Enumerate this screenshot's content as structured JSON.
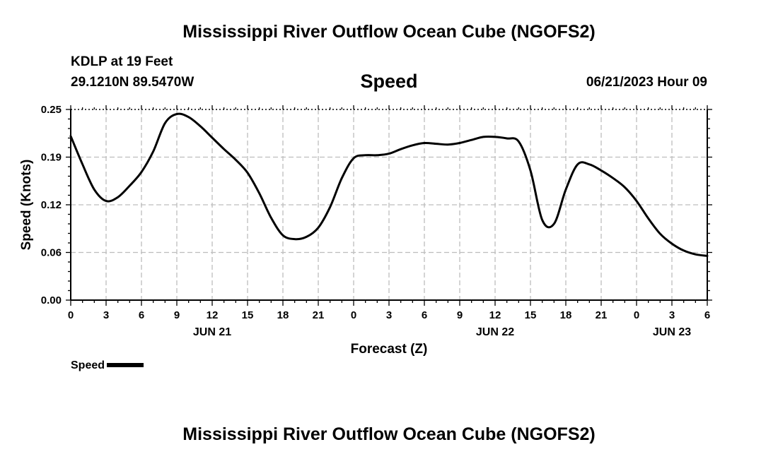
{
  "header": {
    "title": "Mississippi River Outflow Ocean Cube (NGOFS2)",
    "station": "KDLP at 19 Feet",
    "coords": "29.1210N  89.5470W",
    "subtitle": "Speed",
    "datetime": "06/21/2023 Hour 09"
  },
  "footer": {
    "title": "Mississippi River Outflow Ocean Cube (NGOFS2)"
  },
  "legend": {
    "label": "Speed"
  },
  "chart_data": {
    "type": "line",
    "title": "Speed",
    "xlabel": "Forecast (Z)",
    "ylabel": "Speed (Knots)",
    "xlim": [
      0,
      54
    ],
    "ylim": [
      0,
      0.25
    ],
    "x_tick_positions": [
      0,
      3,
      6,
      9,
      12,
      15,
      18,
      21,
      24,
      27,
      30,
      33,
      36,
      39,
      42,
      45,
      48,
      51,
      54
    ],
    "x_tick_labels": [
      "0",
      "3",
      "6",
      "9",
      "12",
      "15",
      "18",
      "21",
      "0",
      "3",
      "6",
      "9",
      "12",
      "15",
      "18",
      "21",
      "0",
      "3",
      "6"
    ],
    "date_labels": [
      {
        "x": 12,
        "label": "JUN 21"
      },
      {
        "x": 36,
        "label": "JUN 22"
      },
      {
        "x": 51,
        "label": "JUN 23"
      }
    ],
    "y_ticks": [
      0.0,
      0.0625,
      0.125,
      0.1875,
      0.25
    ],
    "y_tick_labels": [
      "0.00",
      "0.06",
      "0.12",
      "0.19",
      "0.25"
    ],
    "grid": true,
    "legend_position": "bottom-left",
    "line_color": "#000000",
    "series": [
      {
        "name": "Speed",
        "x": [
          0,
          1,
          2,
          3,
          4,
          5,
          6,
          7,
          8,
          9,
          10,
          11,
          12,
          13,
          14,
          15,
          16,
          17,
          18,
          19,
          20,
          21,
          22,
          23,
          24,
          25,
          26,
          27,
          28,
          29,
          30,
          31,
          32,
          33,
          34,
          35,
          36,
          37,
          38,
          39,
          40,
          41,
          42,
          43,
          44,
          45,
          46,
          47,
          48,
          49,
          50,
          51,
          52,
          53,
          54
        ],
        "y": [
          0.215,
          0.178,
          0.145,
          0.13,
          0.135,
          0.15,
          0.168,
          0.195,
          0.232,
          0.244,
          0.24,
          0.228,
          0.213,
          0.198,
          0.184,
          0.167,
          0.14,
          0.108,
          0.085,
          0.08,
          0.083,
          0.095,
          0.122,
          0.16,
          0.186,
          0.19,
          0.19,
          0.192,
          0.198,
          0.203,
          0.206,
          0.205,
          0.204,
          0.206,
          0.21,
          0.214,
          0.214,
          0.212,
          0.208,
          0.17,
          0.105,
          0.1,
          0.145,
          0.178,
          0.178,
          0.17,
          0.16,
          0.148,
          0.13,
          0.107,
          0.087,
          0.074,
          0.065,
          0.06,
          0.058
        ]
      }
    ]
  }
}
